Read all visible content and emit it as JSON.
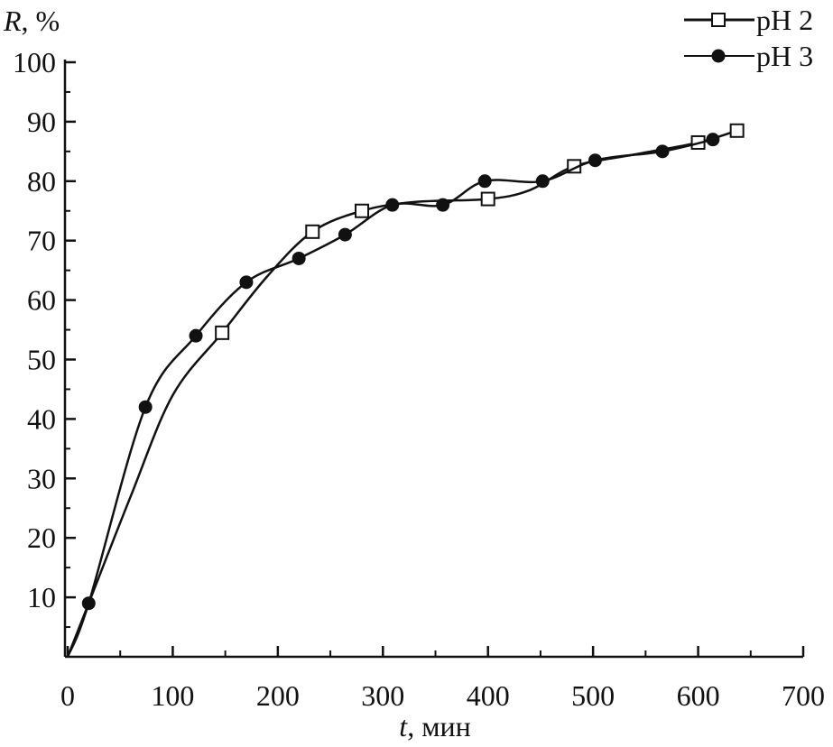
{
  "chart_data": {
    "type": "line",
    "title": "",
    "xlabel": {
      "var": "t",
      "unit": ", мин"
    },
    "ylabel": {
      "var": "R",
      "unit": ", %"
    },
    "xlim": [
      0,
      700
    ],
    "ylim": [
      0,
      100
    ],
    "x_ticks": [
      0,
      100,
      200,
      300,
      400,
      500,
      600,
      700
    ],
    "y_ticks": [
      10,
      20,
      30,
      40,
      50,
      60,
      70,
      80,
      90,
      100
    ],
    "legend_position": "top-right",
    "grid": false,
    "series": [
      {
        "name": "pH 2",
        "marker": "open-square",
        "color": "#111111",
        "x": [
          147,
          233,
          280,
          400,
          482,
          600,
          637
        ],
        "y": [
          54.5,
          71.5,
          75,
          77,
          82.5,
          86.5,
          88.5
        ],
        "curve_x": [
          0,
          20,
          60,
          100,
          147,
          190,
          233,
          280,
          330,
          400,
          440,
          482,
          540,
          600,
          637
        ],
        "curve_y": [
          0,
          9,
          27,
          44,
          54.5,
          64,
          71.5,
          75,
          76.5,
          77,
          78.5,
          82.5,
          84.5,
          86.5,
          88.5
        ]
      },
      {
        "name": "pH 3",
        "marker": "filled-circle",
        "color": "#111111",
        "x": [
          20,
          74,
          122,
          170,
          220,
          264,
          309,
          357,
          397,
          452,
          502,
          566,
          614
        ],
        "y": [
          9,
          42,
          54,
          63,
          67,
          71,
          76,
          76,
          80,
          80,
          83.5,
          85,
          87
        ],
        "curve_x": [
          0,
          20,
          74,
          122,
          170,
          220,
          264,
          309,
          357,
          397,
          452,
          502,
          566,
          614
        ],
        "curve_y": [
          0,
          9,
          42,
          54,
          63,
          67,
          71,
          76,
          76,
          80,
          80,
          83.5,
          85,
          87
        ]
      }
    ]
  }
}
